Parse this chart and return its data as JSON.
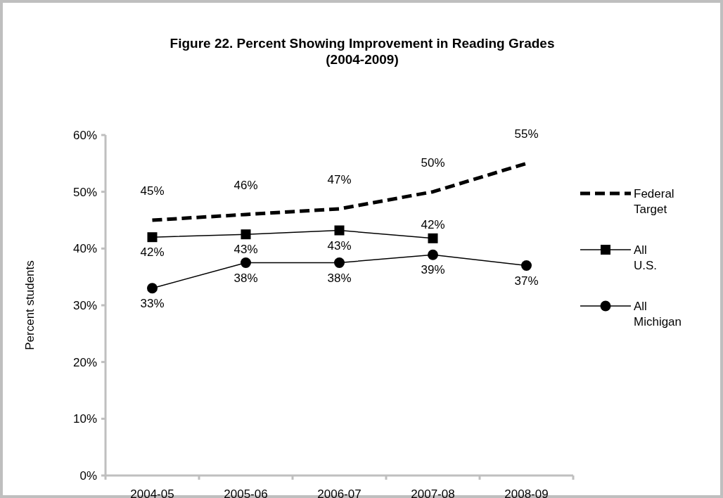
{
  "chart_data": {
    "type": "line",
    "title": "Figure 22. Percent Showing Improvement in Reading Grades\n(2004-2009)",
    "ylabel": "Percent students",
    "categories": [
      "2004-05",
      "2005-06",
      "2006-07",
      "2007-08",
      "2008-09"
    ],
    "series": [
      {
        "name": "Federal Target",
        "color": "#000000",
        "values": [
          45,
          46,
          47,
          50,
          55
        ],
        "value_labels": [
          "45%",
          "46%",
          "47%",
          "50%",
          "55%"
        ],
        "line_style": "dashed",
        "marker": "none"
      },
      {
        "name": "All U.S.",
        "color": "#000000",
        "values": [
          42,
          42.5,
          43.2,
          41.8,
          null
        ],
        "value_labels": [
          "42%",
          "43%",
          "43%",
          "42%",
          null
        ],
        "line_style": "solid",
        "marker": "square"
      },
      {
        "name": "All Michigan",
        "color": "#000000",
        "values": [
          33,
          37.5,
          37.5,
          38.9,
          37
        ],
        "value_labels": [
          "33%",
          "38%",
          "38%",
          "39%",
          "37%"
        ],
        "line_style": "solid",
        "marker": "circle"
      }
    ],
    "ylim": [
      0,
      60
    ],
    "yticks": [
      {
        "value": 0,
        "label": "0%"
      },
      {
        "value": 10,
        "label": "10%"
      },
      {
        "value": 20,
        "label": "20%"
      },
      {
        "value": 30,
        "label": "30%"
      },
      {
        "value": 40,
        "label": "40%"
      },
      {
        "value": 50,
        "label": "50%"
      },
      {
        "value": 60,
        "label": "60%"
      }
    ],
    "grid": false,
    "legend": "right"
  }
}
